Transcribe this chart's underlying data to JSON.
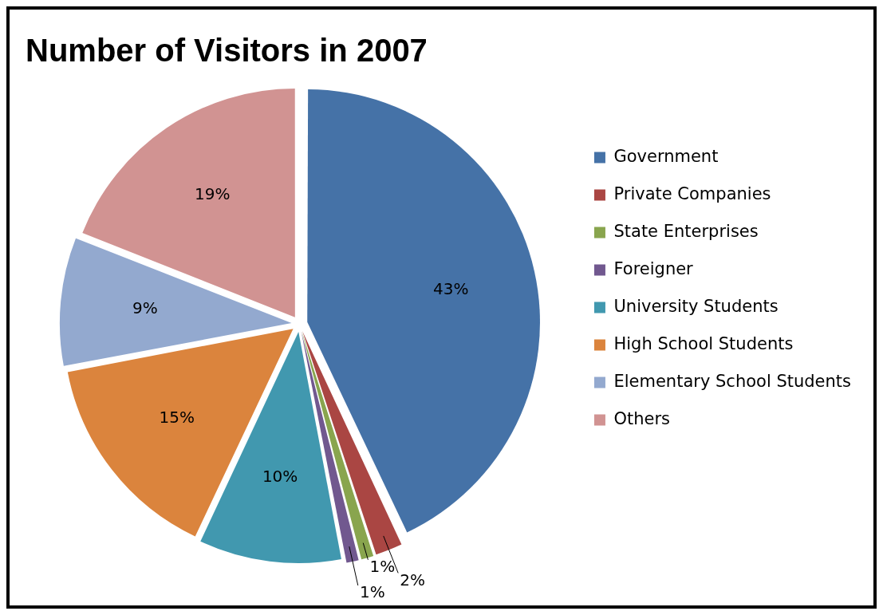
{
  "chart_data": {
    "type": "pie",
    "title": "Number of Visitors in 2007",
    "categories": [
      "Government",
      "Private Companies",
      "State Enterprises",
      "Foreigner",
      "University Students",
      "High School Students",
      "Elementary School Students",
      "Others"
    ],
    "values": [
      43,
      2,
      1,
      1,
      10,
      15,
      9,
      19
    ],
    "value_labels": [
      "43%",
      "2%",
      "1%",
      "1%",
      "10%",
      "15%",
      "9%",
      "19%"
    ],
    "colors": [
      "#4572a7",
      "#aa4643",
      "#89a54e",
      "#71588f",
      "#4198af",
      "#db843d",
      "#93a9cf",
      "#d19392"
    ],
    "legend": "right"
  }
}
